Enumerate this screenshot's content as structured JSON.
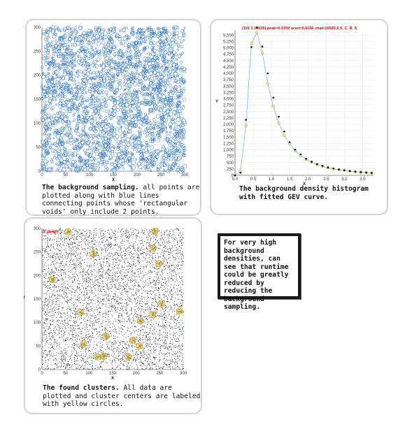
{
  "captions": {
    "panel1_title": "The background sampling.",
    "panel1_body": "  all points are plotted along with blue lines connecting points whose 'rectangular voids' only include 2 points.",
    "panel2_body": "The background density histogram with fitted GEV curve.",
    "panel3_title": "The found clusters.",
    "panel3_body": "  All data are plotted and cluster centers are labeled with yellow circles.",
    "note": "For very high background densities, can see that runtime could be greatly reduced by reducing the background sampling."
  },
  "chart_data": [
    {
      "type": "scatter",
      "subtype": "background-sampling",
      "xlabel": "X",
      "ylabel": "Y",
      "xlim": [
        0,
        300
      ],
      "ylim": [
        0,
        300
      ],
      "xticks": [
        0,
        50,
        100,
        150,
        200,
        250,
        300
      ],
      "yticks": [
        0,
        50,
        100,
        150,
        200,
        250,
        300
      ],
      "point_color": "#4a86c0",
      "grid": false
    },
    {
      "type": "line",
      "subtype": "histogram-with-fit",
      "title": "(191 3 13635) peak=0.5702 xcen=0.6156 chat=10520.6 S_C_R_S",
      "title_color": "#cc0000",
      "xlabel": "X",
      "ylabel": "Y",
      "xlim": [
        0,
        3.8
      ],
      "ylim": [
        0,
        5700
      ],
      "xticks": [
        0.0,
        0.5,
        1.0,
        1.5,
        2.0,
        2.5,
        3.0,
        3.5
      ],
      "xtick_labels": [
        "0.0",
        "0.5",
        "1.0",
        "1.5",
        "2.0",
        "2.5",
        "3.0",
        "3.5"
      ],
      "yticks": [
        0,
        250,
        500,
        750,
        1000,
        1250,
        1500,
        1750,
        2000,
        2250,
        2500,
        2750,
        3000,
        3250,
        3500,
        3750,
        4000,
        4250,
        4500,
        4750,
        5000,
        5250,
        5500
      ],
      "ytick_labels": [
        "0",
        "250",
        "500",
        "750",
        "1,000",
        "1,250",
        "1,500",
        "1,750",
        "2,000",
        "2,250",
        "2,500",
        "2,750",
        "3,000",
        "3,250",
        "3,500",
        "3,750",
        "4,000",
        "4,250",
        "4,500",
        "4,750",
        "5,000",
        "5,250",
        "5,500"
      ],
      "grid": true,
      "series": [
        {
          "role": "histogram",
          "marker": "dot",
          "color": "#111111",
          "x": [
            0.0,
            0.15,
            0.3,
            0.45,
            0.6,
            0.75,
            0.9,
            1.05,
            1.2,
            1.35,
            1.5,
            1.65,
            1.8,
            1.95,
            2.1,
            2.25,
            2.4,
            2.55,
            2.7,
            2.85,
            3.0,
            3.15,
            3.3,
            3.45,
            3.6,
            3.75
          ],
          "y": [
            0,
            100,
            2180,
            5030,
            5800,
            5050,
            4000,
            3050,
            2300,
            1720,
            1300,
            1010,
            820,
            650,
            530,
            440,
            370,
            310,
            270,
            230,
            200,
            170,
            145,
            125,
            110,
            95
          ]
        },
        {
          "role": "fit",
          "marker": "open-circle",
          "color": "#8fa839",
          "x": [
            0.0,
            0.15,
            0.3,
            0.45,
            0.6,
            0.75,
            0.9,
            1.05,
            1.2,
            1.35,
            1.5,
            1.65,
            1.8,
            1.95,
            2.1,
            2.25,
            2.4,
            2.55,
            2.7,
            2.85,
            3.0,
            3.15,
            3.3,
            3.45,
            3.6,
            3.75
          ],
          "y": [
            10,
            150,
            1950,
            5180,
            5600,
            4800,
            3600,
            2700,
            2050,
            1570,
            1230,
            970,
            780,
            630,
            520,
            430,
            360,
            300,
            255,
            220,
            190,
            160,
            140,
            120,
            105,
            90
          ]
        }
      ],
      "fit_curve_color": "#9bbfe0"
    },
    {
      "type": "scatter",
      "subtype": "found-clusters",
      "tag": "S_peaks",
      "tag_color": "#cc0000",
      "xlabel": "X",
      "ylabel": "Y",
      "xlim": [
        0,
        300
      ],
      "ylim": [
        0,
        300
      ],
      "xticks": [
        0,
        50,
        100,
        150,
        200,
        250,
        300
      ],
      "yticks": [
        0,
        50,
        100,
        150,
        200,
        250,
        300
      ],
      "point_color": "#222222",
      "cluster_color": "#e8c84a",
      "clusters": [
        {
          "x": 55,
          "y": 293
        },
        {
          "x": 240,
          "y": 294
        },
        {
          "x": 109,
          "y": 246
        },
        {
          "x": 236,
          "y": 258
        },
        {
          "x": 248,
          "y": 225
        },
        {
          "x": 22,
          "y": 192
        },
        {
          "x": 253,
          "y": 140
        },
        {
          "x": 235,
          "y": 117
        },
        {
          "x": 292,
          "y": 124
        },
        {
          "x": 82,
          "y": 122
        },
        {
          "x": 209,
          "y": 103
        },
        {
          "x": 136,
          "y": 71
        },
        {
          "x": 193,
          "y": 62
        },
        {
          "x": 88,
          "y": 54
        },
        {
          "x": 207,
          "y": 50
        },
        {
          "x": 118,
          "y": 27
        },
        {
          "x": 131,
          "y": 28
        },
        {
          "x": 183,
          "y": 27
        }
      ]
    }
  ]
}
